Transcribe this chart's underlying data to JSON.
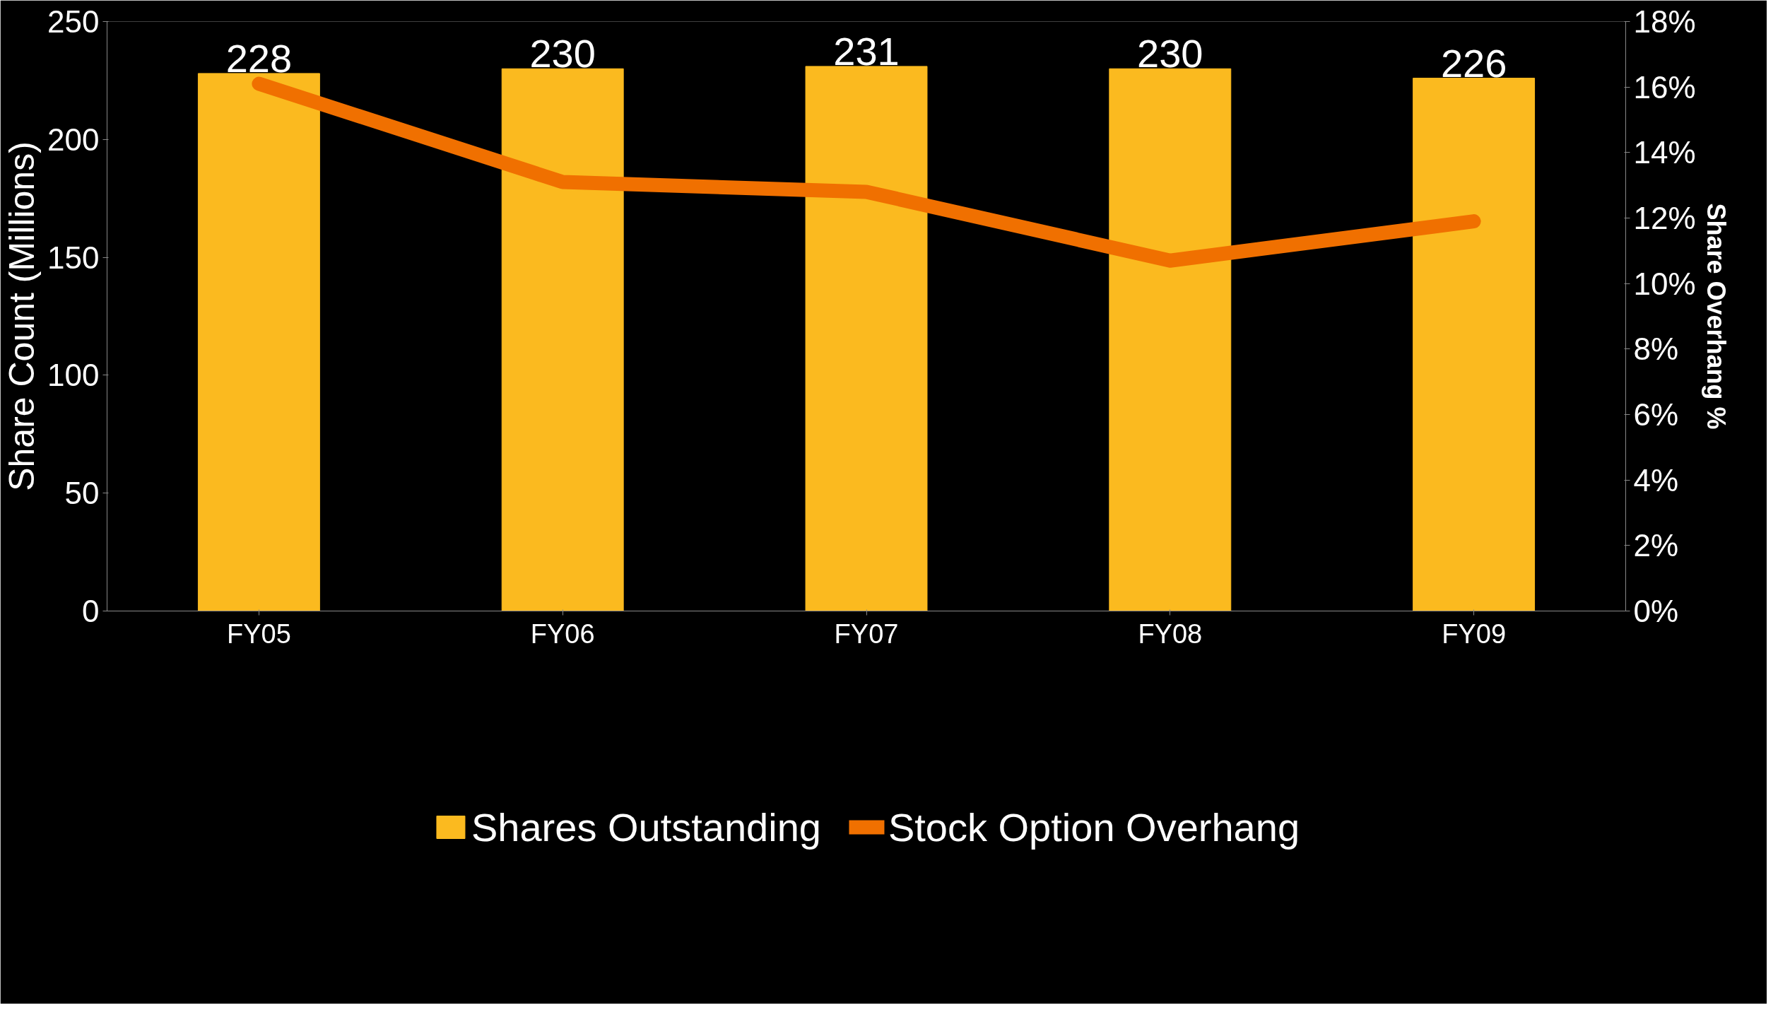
{
  "chart_data": {
    "type": "bar",
    "categories": [
      "FY05",
      "FY06",
      "FY07",
      "FY08",
      "FY09"
    ],
    "ylabel": "Share Count (Millions)",
    "y2label": "Share Overhang %",
    "ylim": [
      0,
      250
    ],
    "yticks": [
      0,
      50,
      100,
      150,
      200,
      250
    ],
    "y2lim": [
      0,
      18
    ],
    "y2ticks": [
      {
        "value": 0,
        "label": "0%"
      },
      {
        "value": 2,
        "label": "2%"
      },
      {
        "value": 4,
        "label": "4%"
      },
      {
        "value": 6,
        "label": "6%"
      },
      {
        "value": 8,
        "label": "8%"
      },
      {
        "value": 10,
        "label": "10%"
      },
      {
        "value": 12,
        "label": "12%"
      },
      {
        "value": 14,
        "label": "14%"
      },
      {
        "value": 16,
        "label": "16%"
      },
      {
        "value": 18,
        "label": "18%"
      }
    ],
    "series": [
      {
        "name": "Shares Outstanding",
        "color": "#fbba1f",
        "values": [
          228,
          230,
          231,
          230,
          226
        ],
        "data_labels": true
      },
      {
        "name": "Stock Option Overhang",
        "type": "line",
        "axis": "y2",
        "color": "#f07000",
        "values": [
          16.1,
          13.1,
          12.8,
          10.7,
          11.9
        ]
      }
    ],
    "legend": "bottom",
    "grid": false
  }
}
